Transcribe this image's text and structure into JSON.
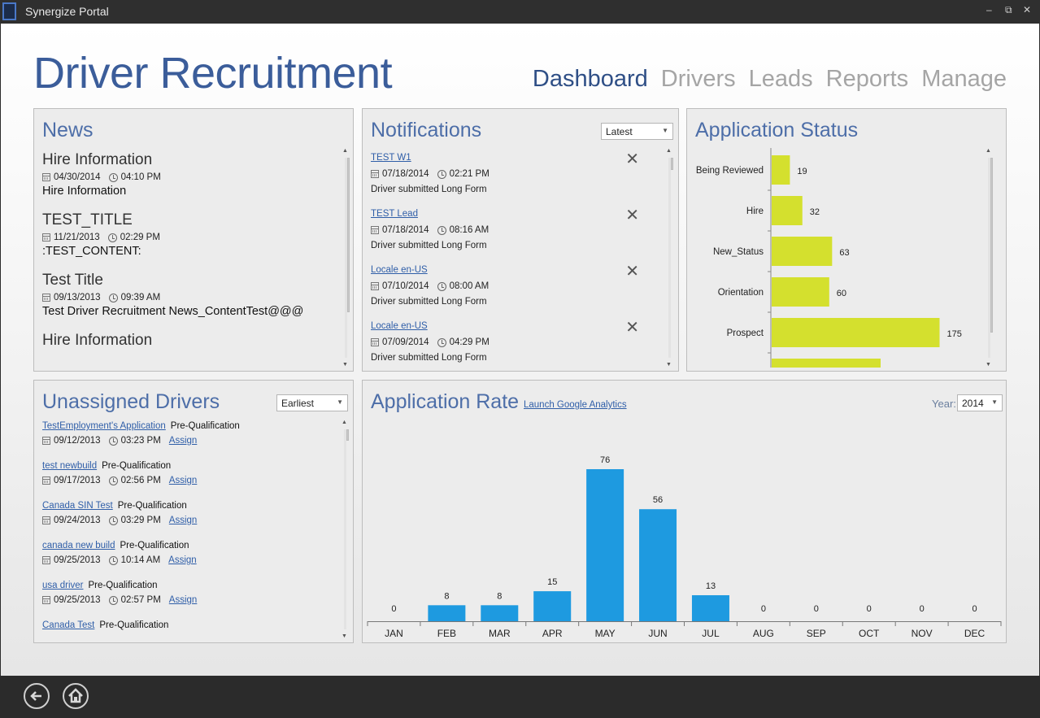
{
  "window": {
    "title": "Synergize Portal",
    "minimize": "‒",
    "restore": "⧉",
    "close": "✕"
  },
  "page": {
    "title": "Driver Recruitment"
  },
  "nav": [
    {
      "label": "Dashboard",
      "active": true
    },
    {
      "label": "Drivers"
    },
    {
      "label": "Leads"
    },
    {
      "label": "Reports"
    },
    {
      "label": "Manage"
    }
  ],
  "news": {
    "title": "News",
    "items": [
      {
        "title": "Hire Information",
        "date": "04/30/2014",
        "time": "04:10 PM",
        "content": "Hire Information"
      },
      {
        "title": "TEST_TITLE",
        "date": "11/21/2013",
        "time": "02:29 PM",
        "content": ":TEST_CONTENT:"
      },
      {
        "title": "Test Title",
        "date": "09/13/2013",
        "time": "09:39 AM",
        "content": "Test Driver Recruitment News_ContentTest@@@"
      },
      {
        "title": "Hire Information",
        "date": "",
        "time": "",
        "content": ""
      }
    ]
  },
  "notifications": {
    "title": "Notifications",
    "sort": "Latest",
    "items": [
      {
        "title": "TEST W1",
        "date": "07/18/2014",
        "time": "02:21 PM",
        "desc": "Driver submitted Long Form"
      },
      {
        "title": "TEST Lead",
        "date": "07/18/2014",
        "time": "08:16 AM",
        "desc": "Driver submitted Long Form"
      },
      {
        "title": "Locale en-US",
        "date": "07/10/2014",
        "time": "08:00 AM",
        "desc": "Driver submitted Long Form"
      },
      {
        "title": "Locale en-US",
        "date": "07/09/2014",
        "time": "04:29 PM",
        "desc": "Driver submitted Long Form"
      }
    ],
    "dismiss_glyph": "✕"
  },
  "status": {
    "title": "Application Status",
    "colors": {
      "bar": "#d4e02e"
    },
    "chart_data": {
      "type": "bar",
      "orientation": "horizontal",
      "categories": [
        "Being Reviewed",
        "Hire",
        "New_Status",
        "Orientation",
        "Prospect",
        ""
      ],
      "values": [
        19,
        32,
        63,
        60,
        175,
        null
      ],
      "xlim": [
        0,
        200
      ]
    }
  },
  "unassigned": {
    "title": "Unassigned Drivers",
    "sort": "Earliest",
    "assign_label": "Assign",
    "items": [
      {
        "name": "TestEmployment's Application",
        "status": "Pre-Qualification",
        "date": "09/12/2013",
        "time": "03:23 PM"
      },
      {
        "name": "test newbuild",
        "status": "Pre-Qualification",
        "date": "09/17/2013",
        "time": "02:56 PM"
      },
      {
        "name": "Canada SIN Test",
        "status": "Pre-Qualification",
        "date": "09/24/2013",
        "time": "03:29 PM"
      },
      {
        "name": "canada new build",
        "status": "Pre-Qualification",
        "date": "09/25/2013",
        "time": "10:14 AM"
      },
      {
        "name": "usa driver",
        "status": "Pre-Qualification",
        "date": "09/25/2013",
        "time": "02:57 PM"
      },
      {
        "name": "Canada Test",
        "status": "Pre-Qualification",
        "date": "",
        "time": ""
      }
    ]
  },
  "rate": {
    "title": "Application Rate",
    "link": "Launch Google Analytics",
    "year_label": "Year:",
    "year": "2014",
    "colors": {
      "bar": "#1e9ae0"
    },
    "chart_data": {
      "type": "bar",
      "categories": [
        "JAN",
        "FEB",
        "MAR",
        "APR",
        "MAY",
        "JUN",
        "JUL",
        "AUG",
        "SEP",
        "OCT",
        "NOV",
        "DEC"
      ],
      "values": [
        0,
        8,
        8,
        15,
        76,
        56,
        13,
        0,
        0,
        0,
        0,
        0
      ],
      "ylim": [
        0,
        80
      ]
    }
  },
  "footer": {
    "back": "back-arrow-icon",
    "home": "home-icon"
  }
}
